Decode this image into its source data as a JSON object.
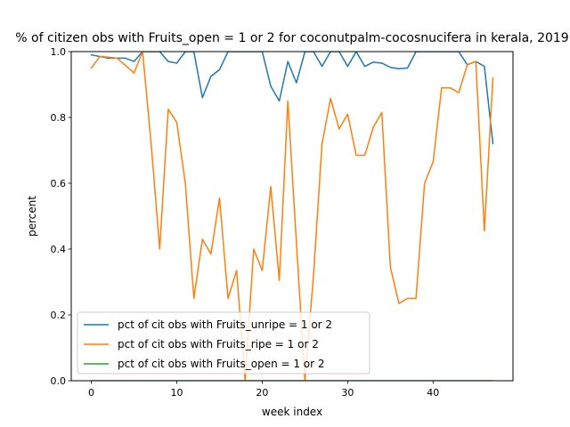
{
  "chart_data": {
    "type": "line",
    "title": "% of citizen obs with Fruits_open = 1 or 2 for coconutpalm-cocosnucifera in kerala, 2019",
    "xlabel": "week index",
    "ylabel": "percent",
    "xlim": [
      -2.35,
      49.35
    ],
    "ylim": [
      0,
      1.0
    ],
    "xticks": [
      0,
      10,
      20,
      30,
      40
    ],
    "yticks": [
      0.0,
      0.2,
      0.4,
      0.6,
      0.8,
      1.0
    ],
    "xtick_labels": [
      "0",
      "10",
      "20",
      "30",
      "40"
    ],
    "ytick_labels": [
      "0.0",
      "0.2",
      "0.4",
      "0.6",
      "0.8",
      "1.0"
    ],
    "legend_position": "lower-left",
    "grid": false,
    "x": [
      0,
      1,
      2,
      3,
      4,
      5,
      6,
      7,
      8,
      9,
      10,
      11,
      12,
      13,
      14,
      15,
      16,
      17,
      18,
      19,
      20,
      21,
      22,
      23,
      24,
      25,
      26,
      27,
      28,
      29,
      30,
      31,
      32,
      33,
      34,
      35,
      36,
      37,
      38,
      39,
      40,
      41,
      42,
      43,
      44,
      45,
      46,
      47
    ],
    "series": [
      {
        "name": "pct of cit obs with Fruits_unripe = 1 or 2",
        "color": "#1f77b4",
        "values": [
          0.99,
          0.985,
          0.98,
          0.98,
          0.98,
          0.97,
          1.0,
          1.0,
          1.0,
          0.97,
          0.965,
          1.0,
          1.0,
          0.86,
          0.925,
          0.945,
          1.0,
          1.0,
          1.0,
          1.0,
          1.0,
          0.895,
          0.85,
          0.97,
          0.905,
          1.0,
          1.0,
          0.955,
          1.0,
          1.0,
          0.955,
          1.0,
          0.955,
          0.968,
          0.965,
          0.952,
          0.948,
          0.95,
          1.0,
          1.0,
          1.0,
          1.0,
          1.0,
          1.0,
          0.96,
          0.97,
          0.955,
          0.72
        ]
      },
      {
        "name": "pct of cit obs with Fruits_ripe = 1 or 2",
        "color": "#ff7f0e",
        "values": [
          0.95,
          0.985,
          0.983,
          0.98,
          0.958,
          0.935,
          1.0,
          0.72,
          0.4,
          0.825,
          0.785,
          0.6,
          0.25,
          0.43,
          0.385,
          0.555,
          0.25,
          0.335,
          0.0,
          0.4,
          0.335,
          0.59,
          0.305,
          0.85,
          0.42,
          0.0,
          0.32,
          0.72,
          0.858,
          0.765,
          0.81,
          0.685,
          0.685,
          0.77,
          0.815,
          0.345,
          0.235,
          0.25,
          0.25,
          0.6,
          0.665,
          0.89,
          0.89,
          0.875,
          0.96,
          0.97,
          0.455,
          0.92
        ]
      },
      {
        "name": "pct of cit obs with Fruits_open = 1 or 2",
        "color": "#2ca02c",
        "values": [
          0,
          0,
          0,
          0,
          0,
          0,
          0,
          0,
          0,
          0,
          0,
          0,
          0,
          0,
          0,
          0,
          0,
          0,
          0,
          0,
          0,
          0,
          0,
          0,
          0,
          0,
          0,
          0,
          0,
          0,
          0,
          0,
          0,
          0,
          0,
          0,
          0,
          0,
          0,
          0,
          0,
          0,
          0,
          0,
          0,
          0,
          0,
          0
        ]
      }
    ]
  }
}
